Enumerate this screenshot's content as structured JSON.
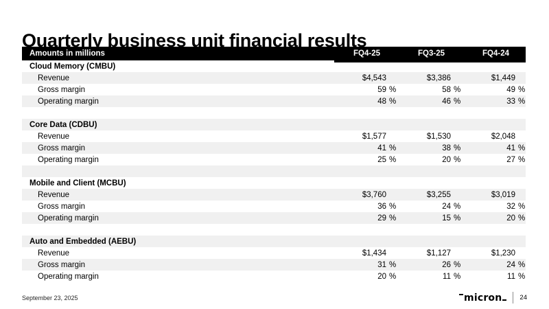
{
  "slide": {
    "title": "Quarterly business unit financial results",
    "footer": {
      "date": "September 23, 2025",
      "logo_text": "micron",
      "page_number": "24"
    }
  },
  "table": {
    "header": {
      "label": "Amounts in millions",
      "columns": [
        "FQ4-25",
        "FQ3-25",
        "FQ4-24"
      ]
    },
    "sections": [
      {
        "name": "Cloud Memory (CMBU)",
        "rows": [
          {
            "label": "Revenue",
            "values": [
              "$4,543",
              "$3,386",
              "$1,449"
            ],
            "unit": ""
          },
          {
            "label": "Gross margin",
            "values": [
              "59",
              "58",
              "49"
            ],
            "unit": "%"
          },
          {
            "label": "Operating margin",
            "values": [
              "48",
              "46",
              "33"
            ],
            "unit": "%"
          }
        ]
      },
      {
        "name": "Core Data (CDBU)",
        "rows": [
          {
            "label": "Revenue",
            "values": [
              "$1,577",
              "$1,530",
              "$2,048"
            ],
            "unit": ""
          },
          {
            "label": "Gross margin",
            "values": [
              "41",
              "38",
              "41"
            ],
            "unit": "%"
          },
          {
            "label": "Operating margin",
            "values": [
              "25",
              "20",
              "27"
            ],
            "unit": "%"
          }
        ]
      },
      {
        "name": "Mobile and Client (MCBU)",
        "rows": [
          {
            "label": "Revenue",
            "values": [
              "$3,760",
              "$3,255",
              "$3,019"
            ],
            "unit": ""
          },
          {
            "label": "Gross margin",
            "values": [
              "36",
              "24",
              "32"
            ],
            "unit": "%"
          },
          {
            "label": "Operating margin",
            "values": [
              "29",
              "15",
              "20"
            ],
            "unit": "%"
          }
        ]
      },
      {
        "name": "Auto and Embedded (AEBU)",
        "rows": [
          {
            "label": "Revenue",
            "values": [
              "$1,434",
              "$1,127",
              "$1,230"
            ],
            "unit": ""
          },
          {
            "label": "Gross margin",
            "values": [
              "31",
              "26",
              "24"
            ],
            "unit": "%"
          },
          {
            "label": "Operating margin",
            "values": [
              "20",
              "11",
              "11"
            ],
            "unit": "%"
          }
        ]
      }
    ]
  },
  "colors": {
    "header_bar": "#000000",
    "row_stripe": "#f0f0f0",
    "text": "#000000",
    "background": "#ffffff"
  }
}
